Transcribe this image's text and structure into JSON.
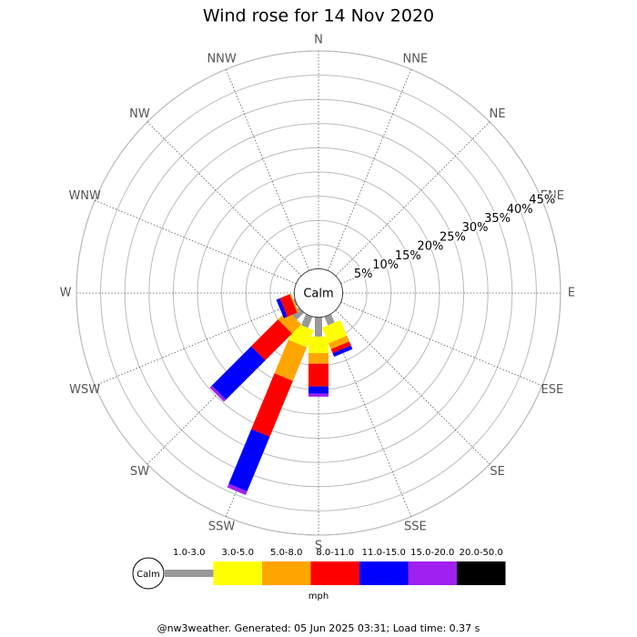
{
  "chart_data": {
    "type": "windrose",
    "title": "Wind rose for 14 Nov 2020",
    "center_label": "Calm",
    "categories": [
      "N",
      "NNE",
      "NE",
      "ENE",
      "E",
      "ESE",
      "SE",
      "SSE",
      "S",
      "SSW",
      "SW",
      "WSW",
      "W",
      "WNW",
      "NW",
      "NNW"
    ],
    "series": [
      {
        "name": "1.0-3.0",
        "color": "#999999",
        "values": [
          0,
          0,
          0,
          0,
          0,
          0,
          0,
          1.9,
          4.0,
          2.5,
          2.1,
          0.3,
          0,
          0,
          0,
          0
        ]
      },
      {
        "name": "3.0-5.0",
        "color": "#ffff00",
        "values": [
          0,
          0,
          0,
          0,
          0,
          0,
          0,
          3.5,
          3.4,
          3.8,
          0,
          0,
          0,
          0,
          0,
          0
        ]
      },
      {
        "name": "5.0-8.0",
        "color": "#ffa500",
        "values": [
          0,
          0,
          0,
          0,
          0,
          0,
          0,
          1.3,
          2.2,
          7.5,
          2.7,
          0.3,
          0,
          0,
          0,
          0
        ]
      },
      {
        "name": "8.0-11.0",
        "color": "#ff0000",
        "values": [
          0,
          0,
          0,
          0,
          0,
          0,
          0,
          0.9,
          4.7,
          12.5,
          7.8,
          2.2,
          0,
          0,
          0,
          0
        ]
      },
      {
        "name": "11.0-15.0",
        "color": "#0000ff",
        "values": [
          0,
          0,
          0,
          0,
          0,
          0,
          0,
          0.8,
          1.5,
          12.2,
          11.5,
          0.8,
          0,
          0,
          0,
          0
        ]
      },
      {
        "name": "15.0-20.0",
        "color": "#a020f0",
        "values": [
          0,
          0,
          0,
          0,
          0,
          0,
          0,
          0,
          0.6,
          0.8,
          0.6,
          0,
          0,
          0,
          0,
          0
        ]
      },
      {
        "name": "20.0-50.0",
        "color": "#000000",
        "values": [
          0,
          0,
          0,
          0,
          0,
          0,
          0,
          0,
          0,
          0,
          0,
          0,
          0,
          0,
          0,
          0
        ]
      }
    ],
    "rlim": [
      0,
      45
    ],
    "rticks": [
      {
        "value": 5,
        "label": "5%"
      },
      {
        "value": 10,
        "label": "10%"
      },
      {
        "value": 15,
        "label": "15%"
      },
      {
        "value": 20,
        "label": "20%"
      },
      {
        "value": 25,
        "label": "25%"
      },
      {
        "value": 30,
        "label": "30%"
      },
      {
        "value": 35,
        "label": "35%"
      },
      {
        "value": 40,
        "label": "40%"
      },
      {
        "value": 45,
        "label": "45%"
      }
    ],
    "legend_calm": "Calm",
    "legend_unit": "mph",
    "footer": "@nw3weather. Generated: 05 Jun 2025 03:31; Load time: 0.37 s"
  }
}
